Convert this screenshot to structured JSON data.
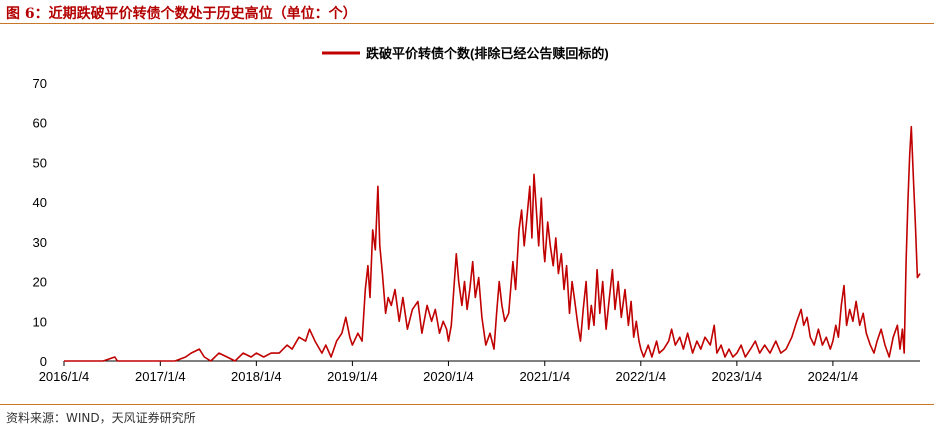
{
  "figure_title": "图 6：近期跌破平价转债个数处于历史高位（单位：个）",
  "source": "资料来源：WIND，天风证券研究所",
  "colors": {
    "series": "#c00000",
    "title": "#b40000",
    "rule": "#c8782a",
    "axis": "#000000"
  },
  "chart_data": {
    "type": "line",
    "title": "",
    "xlabel": "",
    "ylabel": "",
    "ylim": [
      0,
      70
    ],
    "yticks": [
      0,
      10,
      20,
      30,
      40,
      50,
      60,
      70
    ],
    "xlim": [
      "2016-01-04",
      "2024-11-30"
    ],
    "xticks": [
      "2016/1/4",
      "2017/1/4",
      "2018/1/4",
      "2019/1/4",
      "2020/1/4",
      "2021/1/4",
      "2022/1/4",
      "2023/1/4",
      "2024/1/4"
    ],
    "grid": false,
    "legend": "top-center",
    "series": [
      {
        "name": "跌破平价转债个数(排除已经公告赎回标的)",
        "color": "#c00000",
        "points": [
          [
            "2016-01-04",
            0
          ],
          [
            "2016-06-01",
            0
          ],
          [
            "2016-07-15",
            1
          ],
          [
            "2016-07-25",
            0
          ],
          [
            "2016-12-01",
            0
          ],
          [
            "2017-01-04",
            0
          ],
          [
            "2017-03-01",
            0
          ],
          [
            "2017-04-10",
            1
          ],
          [
            "2017-05-01",
            2
          ],
          [
            "2017-06-01",
            3
          ],
          [
            "2017-06-20",
            1
          ],
          [
            "2017-07-15",
            0
          ],
          [
            "2017-08-15",
            2
          ],
          [
            "2017-09-15",
            1
          ],
          [
            "2017-10-15",
            0
          ],
          [
            "2017-11-15",
            2
          ],
          [
            "2017-12-15",
            1
          ],
          [
            "2018-01-04",
            2
          ],
          [
            "2018-02-01",
            1
          ],
          [
            "2018-03-01",
            2
          ],
          [
            "2018-04-01",
            2
          ],
          [
            "2018-05-01",
            4
          ],
          [
            "2018-05-20",
            3
          ],
          [
            "2018-06-15",
            6
          ],
          [
            "2018-07-10",
            5
          ],
          [
            "2018-07-25",
            8
          ],
          [
            "2018-08-15",
            5
          ],
          [
            "2018-09-10",
            2
          ],
          [
            "2018-09-25",
            4
          ],
          [
            "2018-10-15",
            1
          ],
          [
            "2018-11-05",
            5
          ],
          [
            "2018-11-25",
            7
          ],
          [
            "2018-12-10",
            11
          ],
          [
            "2018-12-25",
            6
          ],
          [
            "2019-01-04",
            4
          ],
          [
            "2019-01-25",
            7
          ],
          [
            "2019-02-10",
            5
          ],
          [
            "2019-02-22",
            18
          ],
          [
            "2019-03-04",
            24
          ],
          [
            "2019-03-12",
            16
          ],
          [
            "2019-03-22",
            33
          ],
          [
            "2019-04-01",
            28
          ],
          [
            "2019-04-11",
            44
          ],
          [
            "2019-04-18",
            29
          ],
          [
            "2019-04-28",
            22
          ],
          [
            "2019-05-10",
            12
          ],
          [
            "2019-05-20",
            16
          ],
          [
            "2019-06-01",
            14
          ],
          [
            "2019-06-15",
            18
          ],
          [
            "2019-07-01",
            10
          ],
          [
            "2019-07-15",
            16
          ],
          [
            "2019-08-01",
            8
          ],
          [
            "2019-08-20",
            13
          ],
          [
            "2019-09-10",
            15
          ],
          [
            "2019-09-25",
            7
          ],
          [
            "2019-10-15",
            14
          ],
          [
            "2019-11-01",
            10
          ],
          [
            "2019-11-15",
            13
          ],
          [
            "2019-12-01",
            7
          ],
          [
            "2019-12-15",
            10
          ],
          [
            "2019-12-28",
            8
          ],
          [
            "2020-01-04",
            5
          ],
          [
            "2020-01-15",
            9
          ],
          [
            "2020-02-03",
            27
          ],
          [
            "2020-02-12",
            20
          ],
          [
            "2020-02-24",
            14
          ],
          [
            "2020-03-05",
            20
          ],
          [
            "2020-03-15",
            13
          ],
          [
            "2020-03-25",
            18
          ],
          [
            "2020-04-05",
            25
          ],
          [
            "2020-04-15",
            16
          ],
          [
            "2020-04-28",
            21
          ],
          [
            "2020-05-10",
            11
          ],
          [
            "2020-05-25",
            4
          ],
          [
            "2020-06-10",
            7
          ],
          [
            "2020-06-25",
            3
          ],
          [
            "2020-07-05",
            12
          ],
          [
            "2020-07-15",
            20
          ],
          [
            "2020-07-25",
            14
          ],
          [
            "2020-08-05",
            10
          ],
          [
            "2020-08-20",
            12
          ],
          [
            "2020-09-05",
            25
          ],
          [
            "2020-09-15",
            18
          ],
          [
            "2020-09-28",
            33
          ],
          [
            "2020-10-08",
            38
          ],
          [
            "2020-10-18",
            29
          ],
          [
            "2020-10-28",
            36
          ],
          [
            "2020-11-08",
            44
          ],
          [
            "2020-11-16",
            31
          ],
          [
            "2020-11-24",
            47
          ],
          [
            "2020-12-02",
            39
          ],
          [
            "2020-12-12",
            29
          ],
          [
            "2020-12-22",
            41
          ],
          [
            "2020-12-31",
            28
          ],
          [
            "2021-01-04",
            25
          ],
          [
            "2021-01-15",
            35
          ],
          [
            "2021-01-25",
            29
          ],
          [
            "2021-02-05",
            24
          ],
          [
            "2021-02-15",
            31
          ],
          [
            "2021-02-25",
            22
          ],
          [
            "2021-03-08",
            27
          ],
          [
            "2021-03-18",
            18
          ],
          [
            "2021-03-28",
            24
          ],
          [
            "2021-04-08",
            12
          ],
          [
            "2021-04-18",
            20
          ],
          [
            "2021-04-28",
            15
          ],
          [
            "2021-05-10",
            9
          ],
          [
            "2021-05-20",
            5
          ],
          [
            "2021-05-30",
            13
          ],
          [
            "2021-06-10",
            20
          ],
          [
            "2021-06-20",
            8
          ],
          [
            "2021-06-30",
            14
          ],
          [
            "2021-07-10",
            9
          ],
          [
            "2021-07-22",
            23
          ],
          [
            "2021-08-01",
            12
          ],
          [
            "2021-08-12",
            20
          ],
          [
            "2021-08-25",
            8
          ],
          [
            "2021-09-05",
            15
          ],
          [
            "2021-09-18",
            23
          ],
          [
            "2021-09-28",
            13
          ],
          [
            "2021-10-10",
            20
          ],
          [
            "2021-10-22",
            11
          ],
          [
            "2021-11-05",
            18
          ],
          [
            "2021-11-18",
            9
          ],
          [
            "2021-11-28",
            15
          ],
          [
            "2021-12-08",
            6
          ],
          [
            "2021-12-18",
            10
          ],
          [
            "2021-12-28",
            5
          ],
          [
            "2022-01-04",
            3
          ],
          [
            "2022-01-15",
            1
          ],
          [
            "2022-02-01",
            4
          ],
          [
            "2022-02-15",
            1
          ],
          [
            "2022-03-05",
            5
          ],
          [
            "2022-03-15",
            2
          ],
          [
            "2022-04-01",
            3
          ],
          [
            "2022-04-20",
            5
          ],
          [
            "2022-05-01",
            8
          ],
          [
            "2022-05-15",
            4
          ],
          [
            "2022-06-01",
            6
          ],
          [
            "2022-06-15",
            3
          ],
          [
            "2022-07-01",
            7
          ],
          [
            "2022-07-20",
            2
          ],
          [
            "2022-08-05",
            5
          ],
          [
            "2022-08-20",
            3
          ],
          [
            "2022-09-05",
            6
          ],
          [
            "2022-09-25",
            4
          ],
          [
            "2022-10-10",
            9
          ],
          [
            "2022-10-20",
            2
          ],
          [
            "2022-11-05",
            4
          ],
          [
            "2022-11-20",
            1
          ],
          [
            "2022-12-05",
            3
          ],
          [
            "2022-12-20",
            1
          ],
          [
            "2023-01-04",
            2
          ],
          [
            "2023-01-20",
            4
          ],
          [
            "2023-02-05",
            1
          ],
          [
            "2023-02-25",
            3
          ],
          [
            "2023-03-15",
            5
          ],
          [
            "2023-04-01",
            2
          ],
          [
            "2023-04-20",
            4
          ],
          [
            "2023-05-10",
            2
          ],
          [
            "2023-06-01",
            5
          ],
          [
            "2023-06-20",
            2
          ],
          [
            "2023-07-10",
            3
          ],
          [
            "2023-08-01",
            6
          ],
          [
            "2023-08-20",
            10
          ],
          [
            "2023-09-05",
            13
          ],
          [
            "2023-09-15",
            9
          ],
          [
            "2023-09-28",
            11
          ],
          [
            "2023-10-10",
            6
          ],
          [
            "2023-10-25",
            4
          ],
          [
            "2023-11-10",
            8
          ],
          [
            "2023-11-25",
            4
          ],
          [
            "2023-12-10",
            6
          ],
          [
            "2023-12-25",
            3
          ],
          [
            "2024-01-04",
            5
          ],
          [
            "2024-01-15",
            9
          ],
          [
            "2024-01-25",
            6
          ],
          [
            "2024-02-05",
            14
          ],
          [
            "2024-02-15",
            19
          ],
          [
            "2024-02-25",
            9
          ],
          [
            "2024-03-08",
            13
          ],
          [
            "2024-03-20",
            10
          ],
          [
            "2024-04-01",
            15
          ],
          [
            "2024-04-15",
            9
          ],
          [
            "2024-04-28",
            12
          ],
          [
            "2024-05-10",
            7
          ],
          [
            "2024-05-25",
            4
          ],
          [
            "2024-06-08",
            2
          ],
          [
            "2024-06-20",
            5
          ],
          [
            "2024-07-05",
            8
          ],
          [
            "2024-07-20",
            4
          ],
          [
            "2024-08-05",
            1
          ],
          [
            "2024-08-20",
            6
          ],
          [
            "2024-09-05",
            9
          ],
          [
            "2024-09-15",
            3
          ],
          [
            "2024-09-24",
            8
          ],
          [
            "2024-10-01",
            2
          ],
          [
            "2024-10-08",
            25
          ],
          [
            "2024-10-15",
            40
          ],
          [
            "2024-10-22",
            52
          ],
          [
            "2024-10-28",
            59
          ],
          [
            "2024-11-05",
            46
          ],
          [
            "2024-11-12",
            35
          ],
          [
            "2024-11-20",
            21
          ],
          [
            "2024-11-30",
            22
          ]
        ]
      }
    ]
  }
}
